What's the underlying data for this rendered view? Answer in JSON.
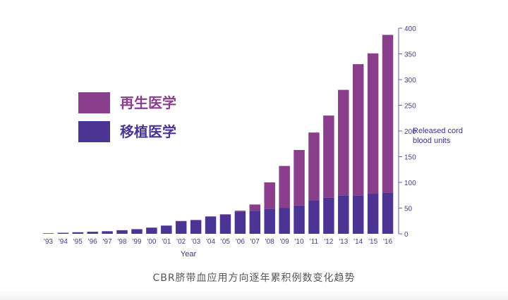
{
  "chart_data": {
    "type": "bar",
    "stacked": true,
    "categories": [
      "'93",
      "'94",
      "'95",
      "'96",
      "'97",
      "'98",
      "'99",
      "'00",
      "'01",
      "'02",
      "'03",
      "'04",
      "'05",
      "'06",
      "'07",
      "'08",
      "'09",
      "'10",
      "'11",
      "'12",
      "'13",
      "'14",
      "'15",
      "'16"
    ],
    "series": [
      {
        "name": "移植医学",
        "color": "#4b3494",
        "values": [
          1,
          2,
          3,
          4,
          5,
          7,
          9,
          12,
          16,
          24,
          26,
          33,
          37,
          43,
          45,
          48,
          50,
          55,
          65,
          70,
          75,
          75,
          78,
          80
        ]
      },
      {
        "name": "再生医学",
        "color": "#8a3f8c",
        "values": [
          0,
          0,
          0,
          0,
          0,
          0,
          0,
          0,
          0,
          1,
          1,
          1,
          1,
          2,
          12,
          52,
          82,
          108,
          132,
          160,
          205,
          255,
          273,
          307
        ]
      }
    ],
    "yticks": [
      0,
      50,
      100,
      150,
      200,
      250,
      300,
      350,
      400
    ],
    "ylim": [
      0,
      400
    ],
    "ylabel": "Released cord blood units",
    "ylabel_lines": [
      "Released cord",
      "blood units"
    ],
    "xlabel": "Year",
    "legend_position": "top-left",
    "grid": false
  },
  "caption": "CBR脐带血应用方向逐年累积例数变化趋势"
}
